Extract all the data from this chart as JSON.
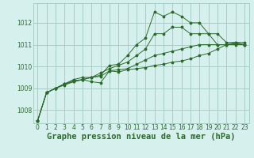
{
  "title": "Graphe pression niveau de la mer (hPa)",
  "background_color": "#d6f0ee",
  "grid_color": "#a0c8c0",
  "line_color": "#2d6b2d",
  "x_ticks": [
    0,
    1,
    2,
    3,
    4,
    5,
    6,
    7,
    8,
    9,
    10,
    11,
    12,
    13,
    14,
    15,
    16,
    17,
    18,
    19,
    20,
    21,
    22,
    23
  ],
  "y_ticks": [
    1008,
    1009,
    1010,
    1011,
    1012
  ],
  "ylim": [
    1007.4,
    1012.9
  ],
  "xlim": [
    -0.5,
    23.5
  ],
  "series": [
    [
      1007.5,
      1008.8,
      1009.0,
      1009.2,
      1009.3,
      1009.4,
      1009.5,
      1009.6,
      1010.05,
      1010.1,
      1010.5,
      1011.0,
      1011.3,
      1012.5,
      1012.3,
      1012.5,
      1012.3,
      1012.0,
      1012.0,
      1011.5,
      1011.0,
      1011.0,
      1011.0,
      1011.0
    ],
    [
      1007.5,
      1008.8,
      1009.0,
      1009.2,
      1009.4,
      1009.5,
      1009.5,
      1009.7,
      1009.9,
      1010.05,
      1010.2,
      1010.5,
      1010.8,
      1011.5,
      1011.5,
      1011.8,
      1011.8,
      1011.5,
      1011.5,
      1011.5,
      1011.5,
      1011.1,
      1011.1,
      1011.0
    ],
    [
      1007.5,
      1008.8,
      1009.0,
      1009.2,
      1009.35,
      1009.4,
      1009.5,
      1009.55,
      1009.8,
      1009.85,
      1009.9,
      1010.1,
      1010.3,
      1010.5,
      1010.6,
      1010.7,
      1010.8,
      1010.9,
      1011.0,
      1011.0,
      1011.0,
      1011.0,
      1011.1,
      1011.1
    ],
    [
      1007.5,
      1008.8,
      1009.0,
      1009.15,
      1009.3,
      1009.4,
      1009.3,
      1009.25,
      1009.8,
      1009.75,
      1009.85,
      1009.9,
      1009.95,
      1010.05,
      1010.1,
      1010.2,
      1010.25,
      1010.35,
      1010.5,
      1010.6,
      1010.8,
      1011.0,
      1011.05,
      1011.0
    ]
  ],
  "title_fontsize": 7.5,
  "tick_fontsize": 5.5
}
